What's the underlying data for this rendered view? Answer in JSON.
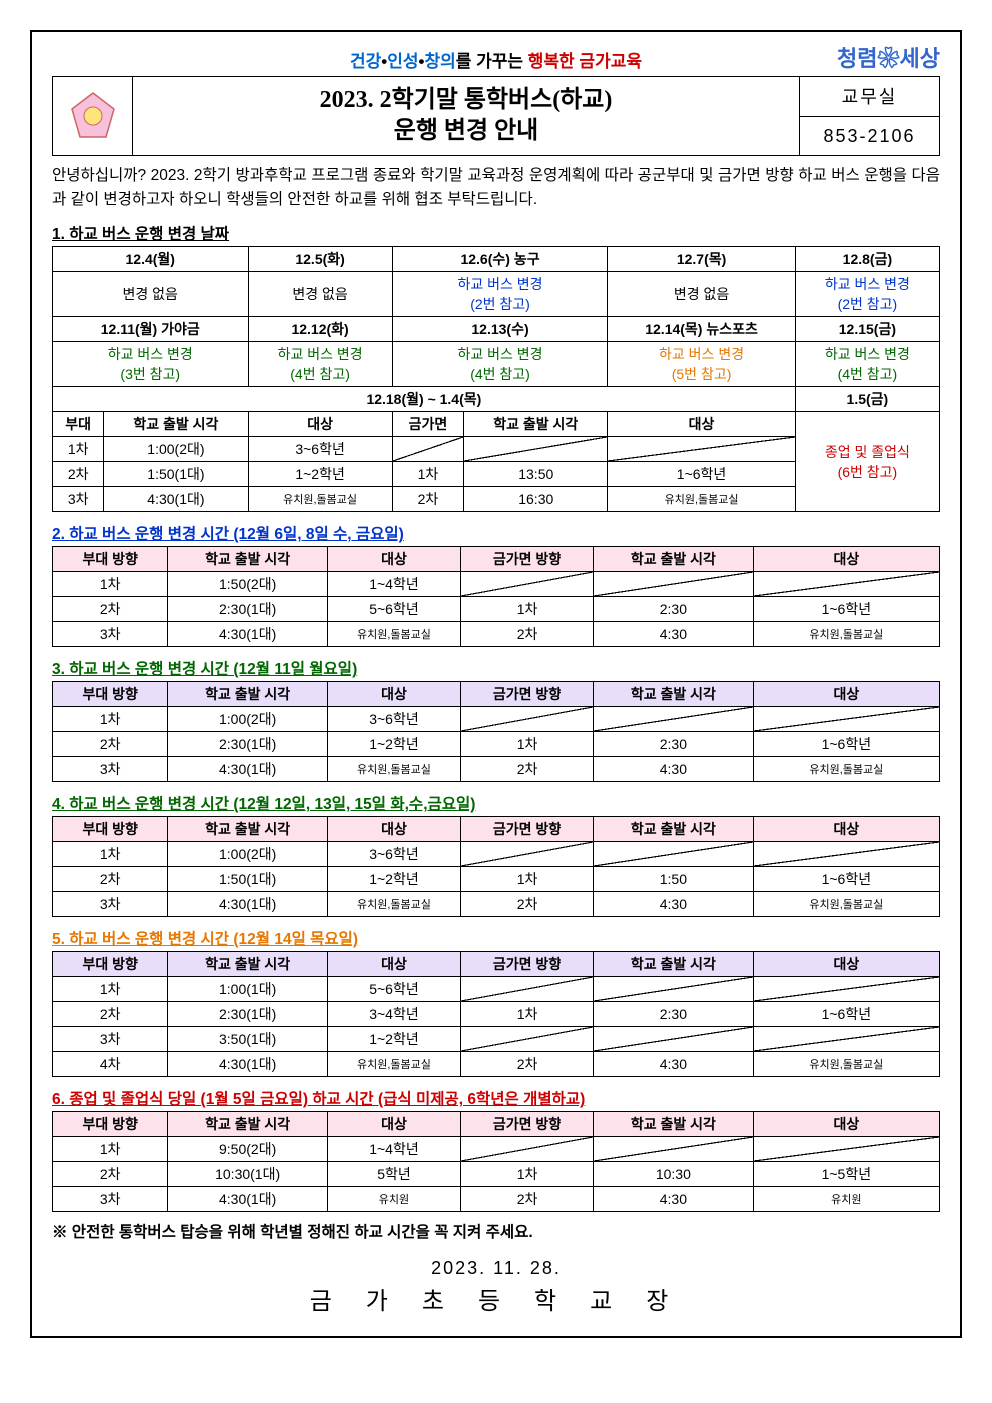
{
  "slogan": {
    "a": "건강",
    "b": "인성",
    "c": "창의",
    "mid": "를 가꾸는 ",
    "d": "행복한 금가교육"
  },
  "worldlogo": "청렴❀세상",
  "title1": "2023. 2학기말 통학버스(하교)",
  "title2": "운행 변경 안내",
  "contact1": "교무실",
  "contact2": "853-2106",
  "intro": "안녕하십니까? 2023. 2학기 방과후학교 프로그램 종료와 학기말 교육과정 운영계획에 따라 공군부대 및 금가면 방향 하교 버스 운행을 다음과 같이 변경하고자 하오니 학생들의 안전한 하교를 위해 협조 부탁드립니다.",
  "sec1": {
    "title": "1. 하교 버스 운행 변경 날짜",
    "r1": [
      "12.4(월)",
      "12.5(화)",
      "12.6(수) 농구",
      "12.7(목)",
      "12.8(금)"
    ],
    "r2a": "변경 없음",
    "r2b": "변경 없음",
    "r2c1": "하교 버스 변경",
    "r2c2": "(2번 참고)",
    "r2d": "변경 없음",
    "r2e1": "하교 버스 변경",
    "r2e2": "(2번 참고)",
    "r3": [
      "12.11(월) 가야금",
      "12.12(화)",
      "12.13(수)",
      "12.14(목) 뉴스포츠",
      "12.15(금)"
    ],
    "r4": [
      [
        "하교 버스 변경",
        "(3번 참고)"
      ],
      [
        "하교 버스 변경",
        "(4번 참고)"
      ],
      [
        "하교 버스 변경",
        "(4번 참고)"
      ],
      [
        "하교 버스 변경",
        "(5번 참고)"
      ],
      [
        "하교 버스 변경",
        "(4번 참고)"
      ]
    ],
    "r5a": "12.18(월) ~ 1.4(목)",
    "r5b": "1.5(금)",
    "subL": {
      "h": [
        "부대",
        "학교 출발 시각",
        "대상"
      ],
      "rows": [
        [
          "1차",
          "1:00(2대)",
          "3~6학년"
        ],
        [
          "2차",
          "1:50(1대)",
          "1~2학년"
        ],
        [
          "3차",
          "4:30(1대)",
          "유치원,돌봄교실"
        ]
      ]
    },
    "subR": {
      "h": [
        "금가면",
        "학교 출발 시각",
        "대상"
      ],
      "rows": [
        [
          "",
          "",
          ""
        ],
        [
          "1차",
          "13:50",
          "1~6학년"
        ],
        [
          "2차",
          "16:30",
          "유치원,돌봄교실"
        ]
      ]
    },
    "r5bnote1": "종업 및 졸업식",
    "r5bnote2": "(6번 참고)"
  },
  "sec2": {
    "title": "2. 하교 버스 운행 변경 시간 (12월 6일, 8일 수, 금요일)",
    "color": "#0033cc",
    "h": [
      "부대 방향",
      "학교 출발 시각",
      "대상",
      "금가면 방향",
      "학교 출발 시각",
      "대상"
    ],
    "rows": [
      [
        "1차",
        "1:50(2대)",
        "1~4학년",
        "",
        "",
        ""
      ],
      [
        "2차",
        "2:30(1대)",
        "5~6학년",
        "1차",
        "2:30",
        "1~6학년"
      ],
      [
        "3차",
        "4:30(1대)",
        "유치원,돌봄교실",
        "2차",
        "4:30",
        "유치원,돌봄교실"
      ]
    ]
  },
  "sec3": {
    "title": "3. 하교 버스 운행 변경 시간 (12월 11일 월요일)",
    "color": "#006600",
    "h": [
      "부대 방향",
      "학교 출발 시각",
      "대상",
      "금가면 방향",
      "학교 출발 시각",
      "대상"
    ],
    "rows": [
      [
        "1차",
        "1:00(2대)",
        "3~6학년",
        "",
        "",
        ""
      ],
      [
        "2차",
        "2:30(1대)",
        "1~2학년",
        "1차",
        "2:30",
        "1~6학년"
      ],
      [
        "3차",
        "4:30(1대)",
        "유치원,돌봄교실",
        "2차",
        "4:30",
        "유치원,돌봄교실"
      ]
    ]
  },
  "sec4": {
    "title": "4. 하교 버스 운행 변경 시간 (12월 12일, 13일, 15일 화,수,금요일)",
    "color": "#006600",
    "h": [
      "부대 방향",
      "학교 출발 시각",
      "대상",
      "금가면 방향",
      "학교 출발 시각",
      "대상"
    ],
    "rows": [
      [
        "1차",
        "1:00(2대)",
        "3~6학년",
        "",
        "",
        ""
      ],
      [
        "2차",
        "1:50(1대)",
        "1~2학년",
        "1차",
        "1:50",
        "1~6학년"
      ],
      [
        "3차",
        "4:30(1대)",
        "유치원,돌봄교실",
        "2차",
        "4:30",
        "유치원,돌봄교실"
      ]
    ]
  },
  "sec5": {
    "title": "5. 하교 버스 운행 변경 시간 (12월 14일 목요일)",
    "color": "#e67700",
    "h": [
      "부대 방향",
      "학교 출발 시각",
      "대상",
      "금가면 방향",
      "학교 출발 시각",
      "대상"
    ],
    "rows": [
      [
        "1차",
        "1:00(1대)",
        "5~6학년",
        "",
        "",
        ""
      ],
      [
        "2차",
        "2:30(1대)",
        "3~4학년",
        "1차",
        "2:30",
        "1~6학년"
      ],
      [
        "3차",
        "3:50(1대)",
        "1~2학년",
        "",
        "",
        ""
      ],
      [
        "4차",
        "4:30(1대)",
        "유치원,돌봄교실",
        "2차",
        "4:30",
        "유치원,돌봄교실"
      ]
    ]
  },
  "sec6": {
    "title": "6. 종업 및 졸업식 당일 (1월 5일 금요일) 하교 시간 (급식 미제공, 6학년은 개별하교)",
    "color": "#cc0000",
    "h": [
      "부대 방향",
      "학교 출발 시각",
      "대상",
      "금가면 방향",
      "학교 출발 시각",
      "대상"
    ],
    "rows": [
      [
        "1차",
        "9:50(2대)",
        "1~4학년",
        "",
        "",
        ""
      ],
      [
        "2차",
        "10:30(1대)",
        "5학년",
        "1차",
        "10:30",
        "1~5학년"
      ],
      [
        "3차",
        "4:30(1대)",
        "유치원",
        "2차",
        "4:30",
        "유치원"
      ]
    ]
  },
  "footnote": "※ 안전한 통학버스 탑승을 위해 학년별 정해진 하교 시간을 꼭 지켜 주세요.",
  "sigdate": "2023. 11. 28.",
  "signame": "금 가 초 등 학 교 장"
}
